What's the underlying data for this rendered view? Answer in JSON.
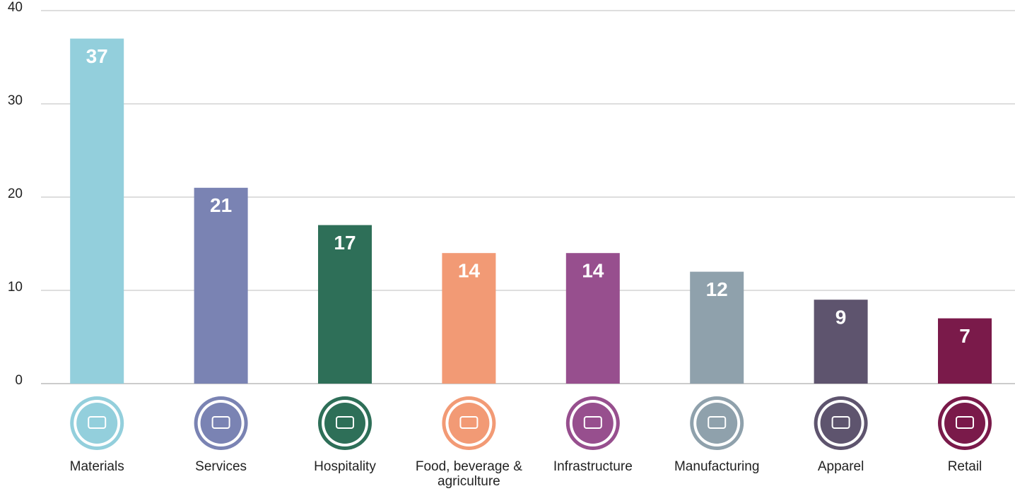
{
  "chart_data": {
    "type": "bar",
    "categories": [
      "Materials",
      "Services",
      "Hospitality",
      "Food, beverage & agriculture",
      "Infrastructure",
      "Manufacturing",
      "Apparel",
      "Retail"
    ],
    "values": [
      37,
      21,
      17,
      14,
      14,
      12,
      9,
      7
    ],
    "colors": [
      "#93cfdc",
      "#7a83b3",
      "#2e6f58",
      "#f29a75",
      "#974f8e",
      "#8fa1ac",
      "#5e546e",
      "#7a1a4a"
    ],
    "ylim": [
      0,
      40
    ],
    "yticks": [
      0,
      10,
      20,
      30,
      40
    ],
    "grid": true
  }
}
